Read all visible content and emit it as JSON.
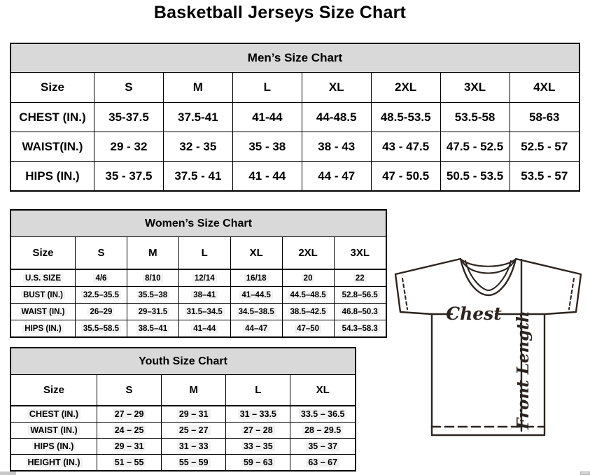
{
  "title": "Basketball Jerseys Size Chart",
  "mens": {
    "title": "Men’s Size Chart",
    "size_label": "Size",
    "columns": [
      "S",
      "M",
      "L",
      "XL",
      "2XL",
      "3XL",
      "4XL"
    ],
    "rows": [
      {
        "label": "CHEST (IN.)",
        "values": [
          "35-37.5",
          "37.5-41",
          "41-44",
          "44-48.5",
          "48.5-53.5",
          "53.5-58",
          "58-63"
        ]
      },
      {
        "label": "WAIST(IN.)",
        "values": [
          "29 - 32",
          "32 - 35",
          "35 - 38",
          "38 - 43",
          "43 - 47.5",
          "47.5 - 52.5",
          "52.5 - 57"
        ]
      },
      {
        "label": "HIPS (IN.)",
        "values": [
          "35 - 37.5",
          "37.5 - 41",
          "41 - 44",
          "44 - 47",
          "47 - 50.5",
          "50.5 - 53.5",
          "53.5 - 57"
        ]
      }
    ]
  },
  "womens": {
    "title": "Women’s Size Chart",
    "size_label": "Size",
    "columns": [
      "S",
      "M",
      "L",
      "XL",
      "2XL",
      "3XL"
    ],
    "rows": [
      {
        "label": "U.S. SIZE",
        "values": [
          "4/6",
          "8/10",
          "12/14",
          "16/18",
          "20",
          "22"
        ]
      },
      {
        "label": "BUST (IN.)",
        "values": [
          "32.5–35.5",
          "35.5–38",
          "38–41",
          "41–44.5",
          "44.5–48.5",
          "52.8–56.5"
        ]
      },
      {
        "label": "WAIST (IN.)",
        "values": [
          "26–29",
          "29–31.5",
          "31.5–34.5",
          "34.5–38.5",
          "38.5–42.5",
          "46.8–50.3"
        ]
      },
      {
        "label": "HIPS (IN.)",
        "values": [
          "35.5–58.5",
          "38.5–41",
          "41–44",
          "44–47",
          "47–50",
          "54.3–58.3"
        ]
      }
    ]
  },
  "youth": {
    "title": "Youth Size Chart",
    "size_label": "Size",
    "columns": [
      "S",
      "M",
      "L",
      "XL"
    ],
    "rows": [
      {
        "label": "CHEST (IN.)",
        "values": [
          "27 – 29",
          "29 – 31",
          "31 – 33.5",
          "33.5 – 36.5"
        ]
      },
      {
        "label": "WAIST (IN.)",
        "values": [
          "24 – 25",
          "25 – 27",
          "27 – 28",
          "28 – 29.5"
        ]
      },
      {
        "label": "HIPS (IN.)",
        "values": [
          "29 – 31",
          "31 – 33",
          "33 – 35",
          "35 – 37"
        ]
      },
      {
        "label": "HEIGHT (IN.)",
        "values": [
          "51 – 55",
          "55 – 59",
          "59 – 63",
          "63 – 67"
        ]
      }
    ]
  },
  "diagram": {
    "chest_label": "Chest",
    "front_length_label": "Front Length"
  },
  "colors": {
    "header_band": "#d9d9d9",
    "highlight": "#f2f2f2",
    "border": "#000000",
    "jersey_line": "#2b2420"
  }
}
